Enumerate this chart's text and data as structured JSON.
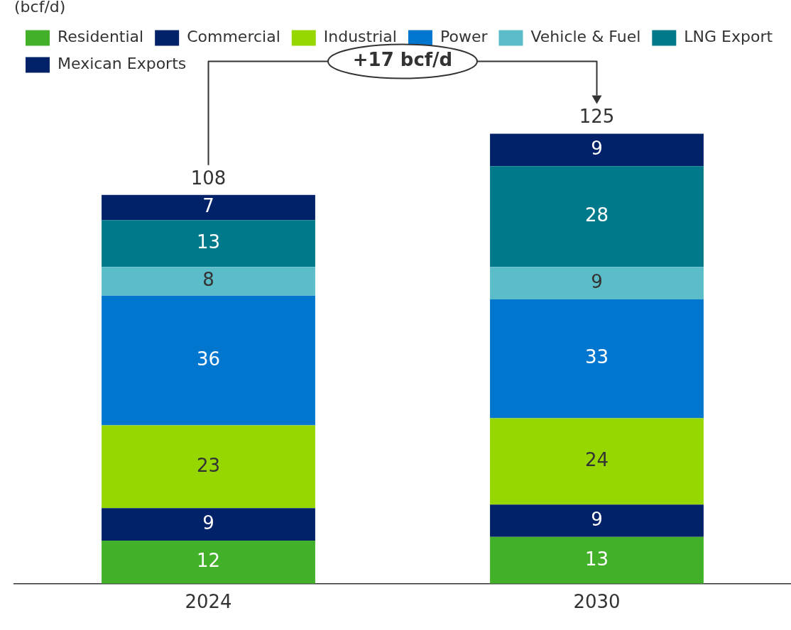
{
  "chart_data": {
    "type": "bar",
    "stacked": true,
    "legend_title": "(bcf/d)",
    "legend": "top left",
    "data_labels": true,
    "grid": false,
    "categories": [
      "2024",
      "2030"
    ],
    "series": [
      {
        "name": "Residential",
        "color": "#43b02a",
        "values": [
          12,
          13
        ]
      },
      {
        "name": "Commercial",
        "color": "#012169",
        "values": [
          9,
          9
        ]
      },
      {
        "name": "Industrial",
        "color": "#97d700",
        "values": [
          23,
          24
        ]
      },
      {
        "name": "Power",
        "color": "#0076ce",
        "values": [
          36,
          33
        ]
      },
      {
        "name": "Vehicle & Fuel",
        "color": "#5bbdc9",
        "values": [
          8,
          9
        ]
      },
      {
        "name": "LNG Export",
        "color": "#007a8a",
        "values": [
          13,
          28
        ]
      },
      {
        "name": "Mexican Exports",
        "color": "#012169",
        "values": [
          7,
          9
        ]
      }
    ],
    "totals": [
      "108",
      "125"
    ],
    "annotations": [
      "+17 bcf/d"
    ]
  }
}
